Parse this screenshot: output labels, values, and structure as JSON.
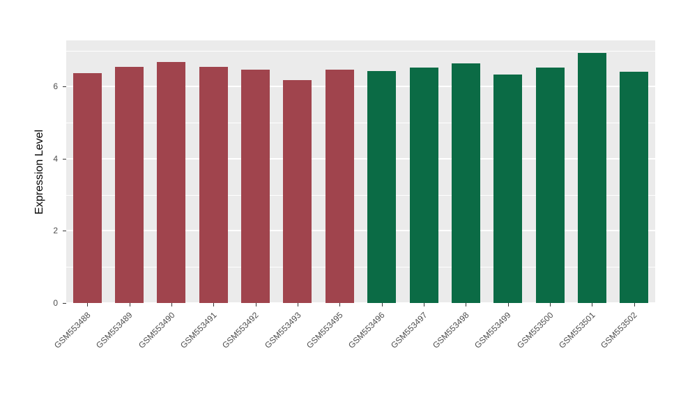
{
  "chart_data": {
    "type": "bar",
    "title": "",
    "xlabel": "",
    "ylabel": "Expression Level",
    "ylim": [
      0,
      7.28
    ],
    "yticks": [
      0,
      2,
      4,
      6
    ],
    "minor_gridlines": [
      1,
      3,
      5,
      7
    ],
    "grid": true,
    "legend": false,
    "categories": [
      "GSM553488",
      "GSM553489",
      "GSM553490",
      "GSM553491",
      "GSM553492",
      "GSM553493",
      "GSM553495",
      "GSM553496",
      "GSM553497",
      "GSM553498",
      "GSM553499",
      "GSM553500",
      "GSM553501",
      "GSM553502"
    ],
    "values": [
      6.38,
      6.55,
      6.68,
      6.55,
      6.47,
      6.17,
      6.47,
      6.44,
      6.53,
      6.64,
      6.33,
      6.53,
      6.93,
      6.41
    ],
    "bar_colors": [
      "#A0444D",
      "#A0444D",
      "#A0444D",
      "#A0444D",
      "#A0444D",
      "#A0444D",
      "#A0444D",
      "#0B6B45",
      "#0B6B45",
      "#0B6B45",
      "#0B6B45",
      "#0B6B45",
      "#0B6B45",
      "#0B6B45"
    ],
    "colors": {
      "group_left": "#A0444D",
      "group_right": "#0B6B45",
      "panel_background": "#EBEBEB",
      "gridline": "#FFFFFF",
      "tick_label": "#4D4D4D",
      "axis_title": "#000000"
    }
  },
  "layout_labels": {
    "y_axis_title": "Expression Level"
  }
}
